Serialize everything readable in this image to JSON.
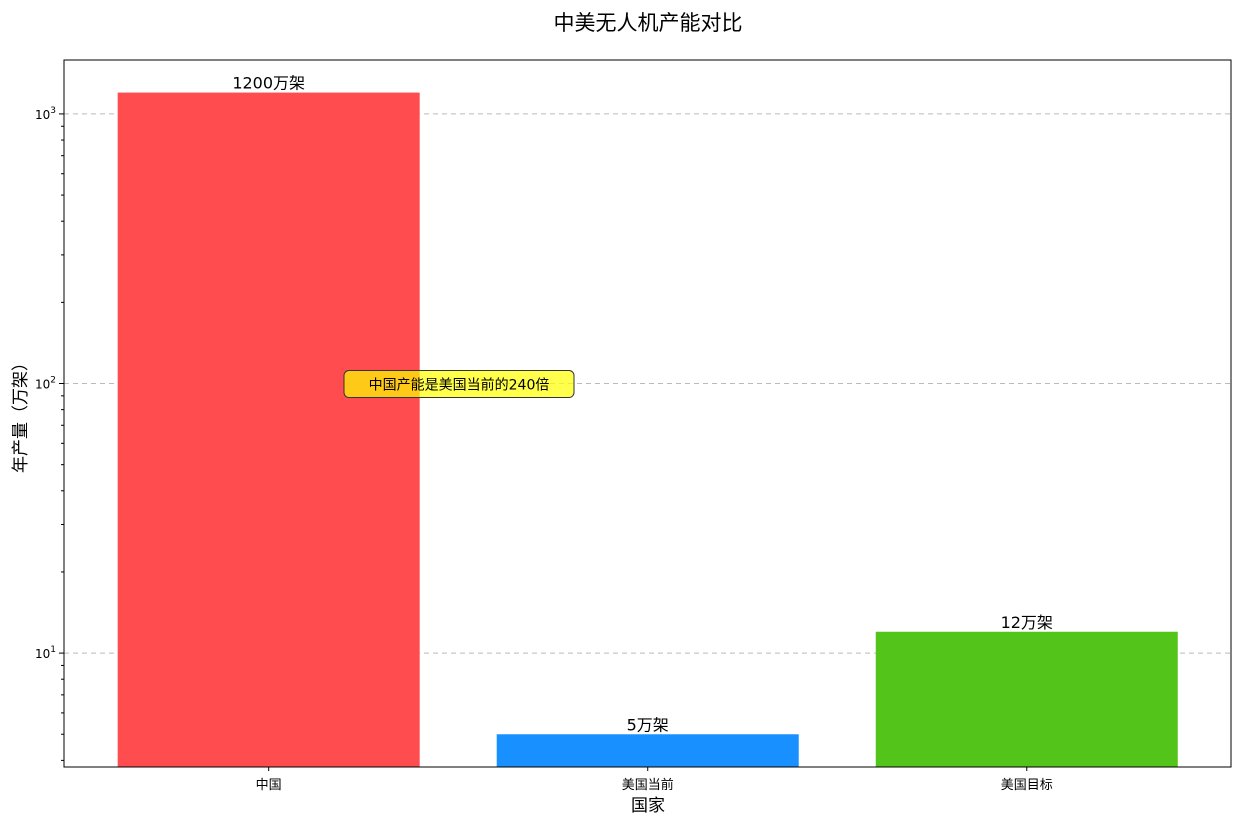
{
  "chart_data": {
    "type": "bar",
    "title": "中美无人机产能对比",
    "xlabel": "国家",
    "ylabel": "年产量（万架）",
    "yscale": "log",
    "ylim": [
      3.78,
      1585
    ],
    "yticks": [
      {
        "value": 10,
        "base": "10",
        "exp": "1"
      },
      {
        "value": 100,
        "base": "10",
        "exp": "2"
      },
      {
        "value": 1000,
        "base": "10",
        "exp": "3"
      }
    ],
    "grid": "y-dashed",
    "categories": [
      "中国",
      "美国当前",
      "美国目标"
    ],
    "values": [
      1200,
      5,
      12
    ],
    "data_labels": [
      "1200万架",
      "5万架",
      "12万架"
    ],
    "colors": [
      "#FF4D4F",
      "#1890FF",
      "#52C41A"
    ],
    "annotation": {
      "text": "中国产能是美国当前的240倍",
      "x_between": [
        "中国",
        "美国当前"
      ],
      "y": 100,
      "fill": "#FFFF00",
      "edge": "#333333"
    }
  }
}
